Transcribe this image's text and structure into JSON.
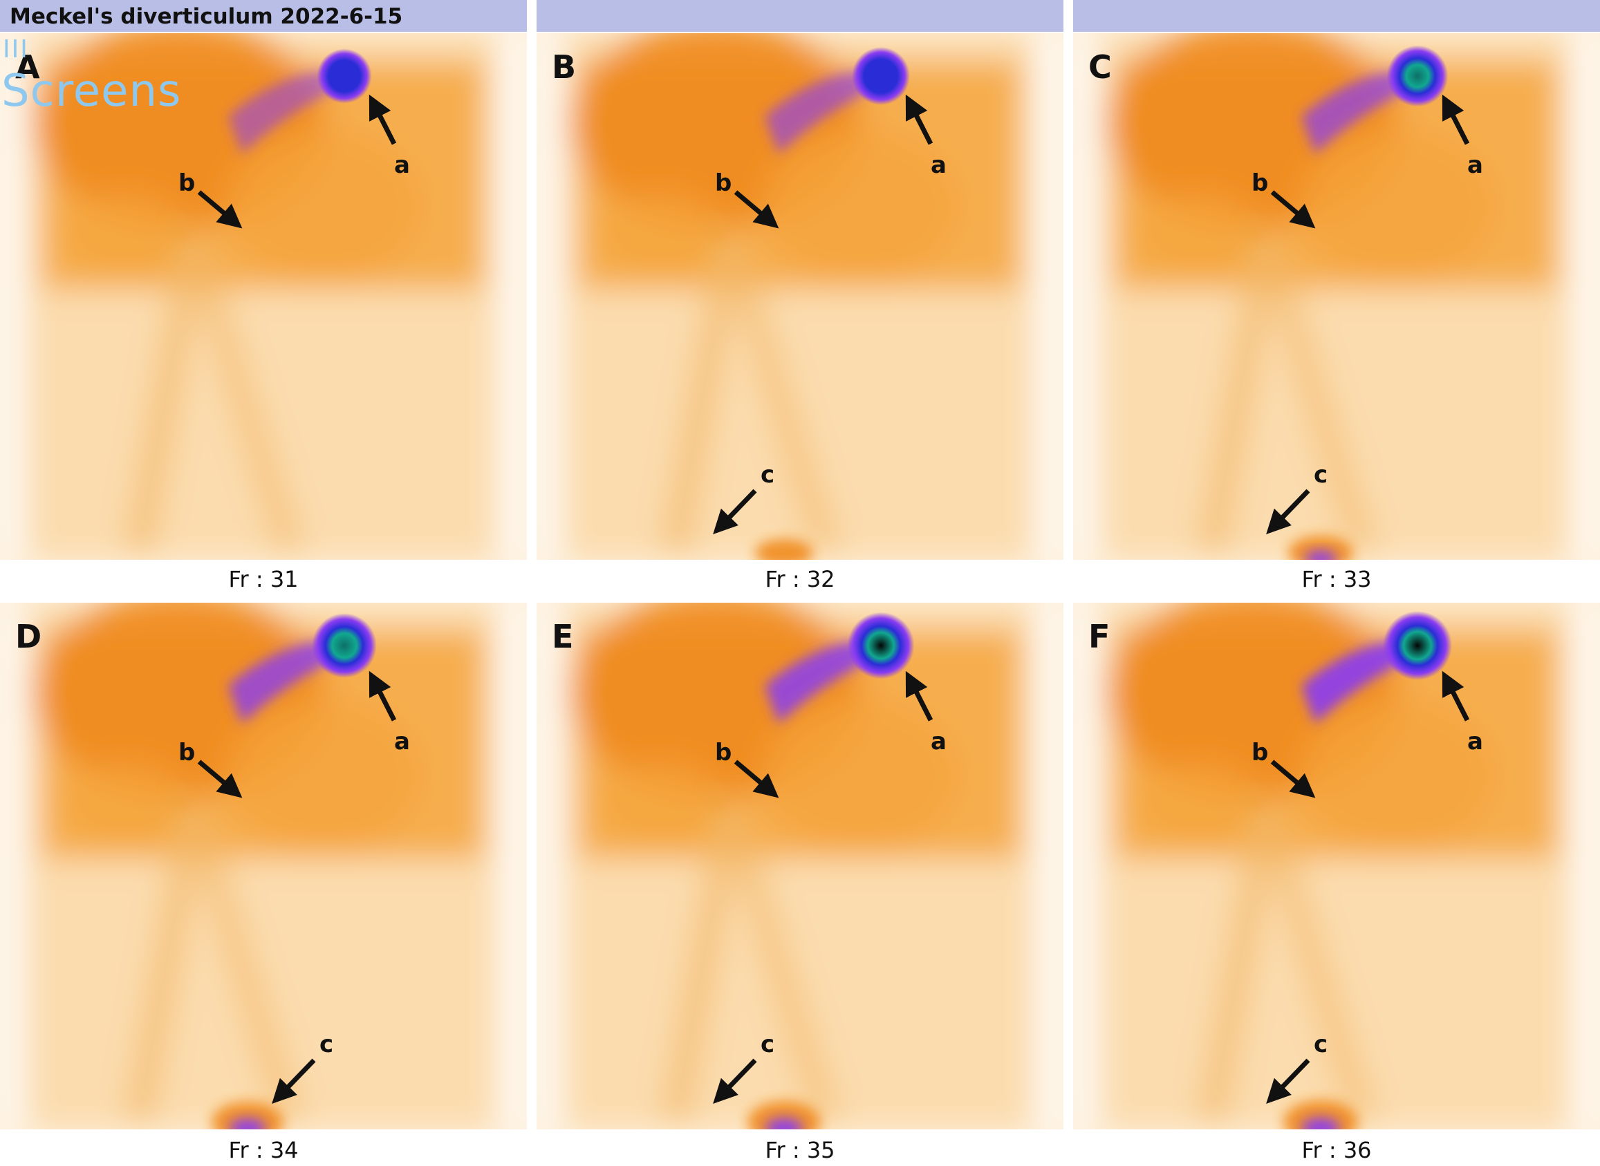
{
  "title": "Meckel's diverticulum 2022-6-15",
  "watermark": {
    "bars": "III",
    "text": "Screens"
  },
  "arrow_labels": {
    "a": "a",
    "b": "b",
    "c": "c"
  },
  "panels": [
    {
      "letter": "A",
      "frame": "Fr : 31",
      "activity_level": 0.35,
      "bladder_level": 0.0,
      "show_c": false
    },
    {
      "letter": "B",
      "frame": "Fr : 32",
      "activity_level": 0.5,
      "bladder_level": 0.1,
      "show_c": true
    },
    {
      "letter": "C",
      "frame": "Fr : 33",
      "activity_level": 0.65,
      "bladder_level": 0.35,
      "show_c": true
    },
    {
      "letter": "D",
      "frame": "Fr : 34",
      "activity_level": 0.8,
      "bladder_level": 0.6,
      "show_c": true
    },
    {
      "letter": "E",
      "frame": "Fr : 35",
      "activity_level": 0.9,
      "bladder_level": 0.65,
      "show_c": true
    },
    {
      "letter": "F",
      "frame": "Fr : 36",
      "activity_level": 1.0,
      "bladder_level": 0.7,
      "show_c": true
    }
  ],
  "colors": {
    "header": "#b9bee6",
    "background": "#fdf0dc",
    "tissue": "#f5a43c",
    "liver": "#f08a1e",
    "uptake_outer": "#8a3cf2",
    "uptake_mid": "#2a2dd6",
    "uptake_core": "#0e6f66",
    "arrow": "#111111"
  }
}
